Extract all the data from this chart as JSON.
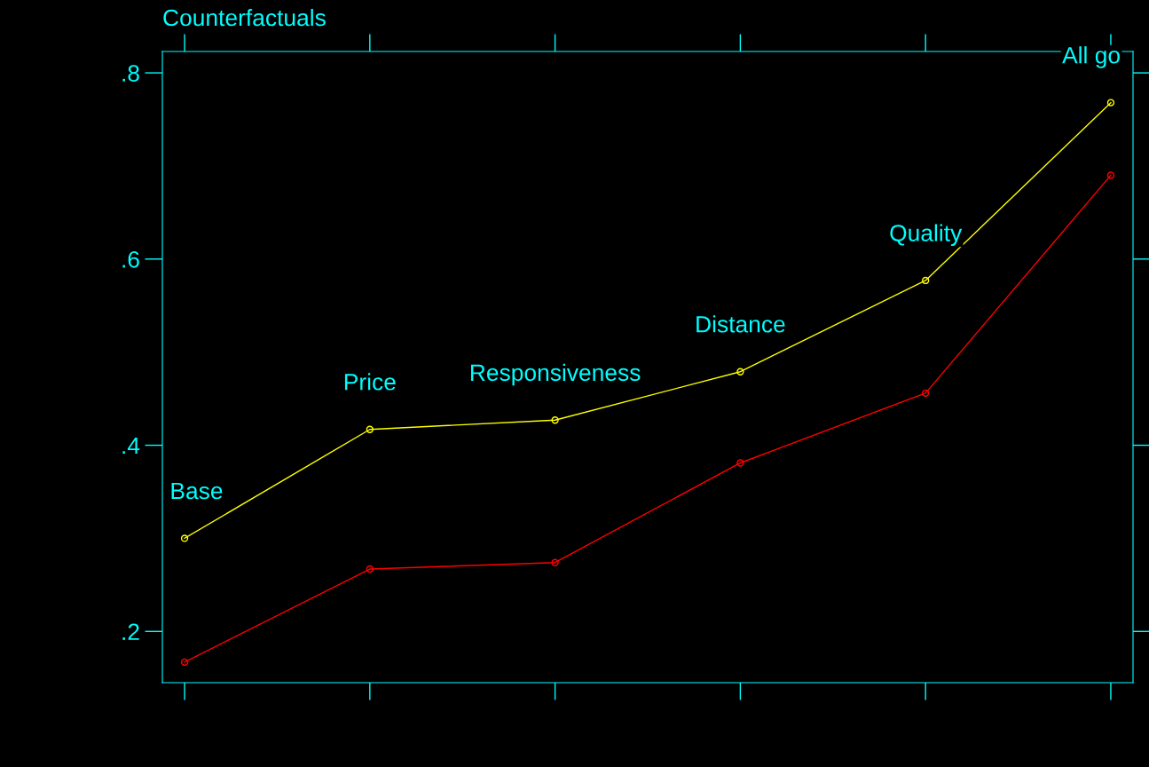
{
  "chart_data": {
    "type": "line",
    "title": "Counterfactuals",
    "categories": [
      null,
      null,
      null,
      null,
      null,
      null
    ],
    "series": [
      {
        "color": "#ffff00",
        "values": [
          0.3,
          0.417,
          0.427,
          0.479,
          0.577,
          0.768
        ]
      },
      {
        "color": "#ff0000",
        "values": [
          0.167,
          0.267,
          0.274,
          0.381,
          0.456,
          0.69
        ]
      }
    ],
    "annotations": [
      "Base",
      "Price",
      "Responsiveness",
      "Distance",
      "Quality",
      "All go"
    ],
    "ylim": [
      0.145,
      0.823
    ],
    "yticks": [
      {
        "value": 0.2,
        "label": ".2"
      },
      {
        "value": 0.4,
        "label": ".4"
      },
      {
        "value": 0.6,
        "label": ".6"
      },
      {
        "value": 0.8,
        "label": ".8"
      }
    ],
    "tick_labels": "y",
    "grid": false,
    "legend": false,
    "marker": "circle",
    "line_style": "solid"
  }
}
